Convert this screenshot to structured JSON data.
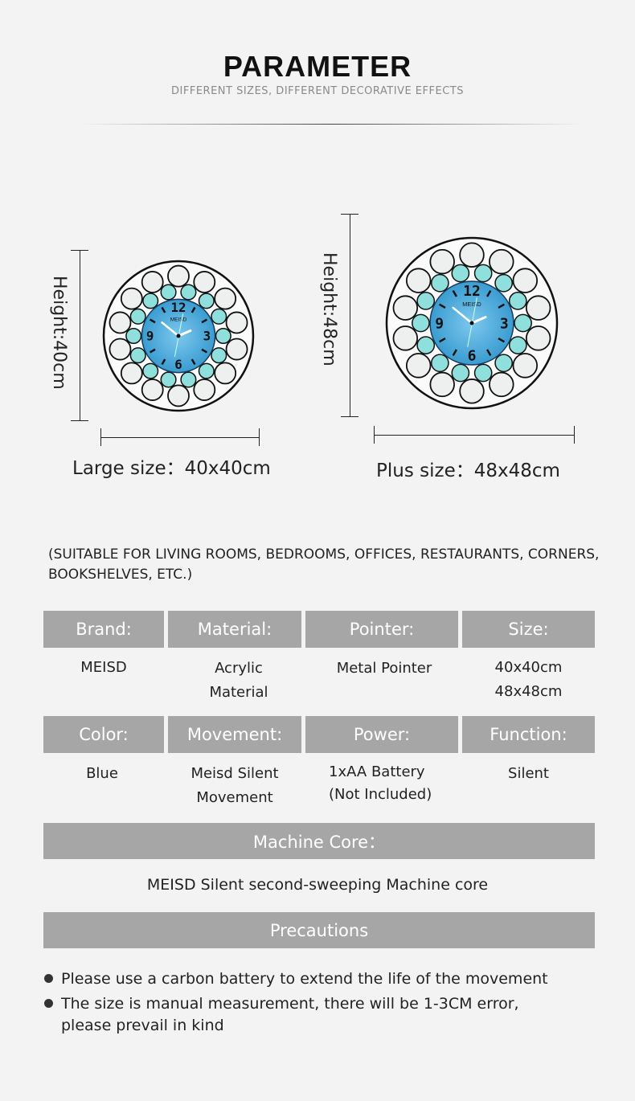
{
  "header": {
    "title": "PARAMETER",
    "subtitle": "DIFFERENT SIZES, DIFFERENT DECORATIVE EFFECTS"
  },
  "products": [
    {
      "height_label": "Height:40cm",
      "size_label": "Large size：40x40cm",
      "clock_brand": "MEISD"
    },
    {
      "height_label": "Height:48cm",
      "size_label": "Plus size：48x48cm",
      "clock_brand": "MEISD"
    }
  ],
  "clock_colors": {
    "face": "#3a9cd0",
    "teal": "#8fe0dc",
    "ring": "#111111"
  },
  "suitable": "(SUITABLE FOR LIVING ROOMS, BEDROOMS, OFFICES, RESTAURANTS, CORNERS, BOOKSHELVES, ETC.)",
  "specs_row1": [
    {
      "label": "Brand:",
      "value": "MEISD"
    },
    {
      "label": "Material:",
      "value": "Acrylic\nMaterial"
    },
    {
      "label": "Pointer:",
      "value": "Metal Pointer"
    },
    {
      "label": "Size:",
      "value": "40x40cm\n48x48cm"
    }
  ],
  "specs_row2": [
    {
      "label": "Color:",
      "value": "Blue"
    },
    {
      "label": "Movement:",
      "value": "Meisd Silent\nMovement"
    },
    {
      "label": "Power:",
      "value": "1xAA Battery\n(Not Included)"
    },
    {
      "label": "Function:",
      "value": "Silent"
    }
  ],
  "machine_core": {
    "label": "Machine Core：",
    "value": "MEISD Silent second-sweeping Machine core"
  },
  "precautions": {
    "label": "Precautions",
    "items": [
      "Please use a carbon battery to extend the life of the movement",
      "The size is manual measurement, there will be 1-3CM error,\nplease prevail in kind"
    ]
  },
  "colors": {
    "header_bar": "#a6a6a6",
    "background": "#f3f3f3"
  }
}
